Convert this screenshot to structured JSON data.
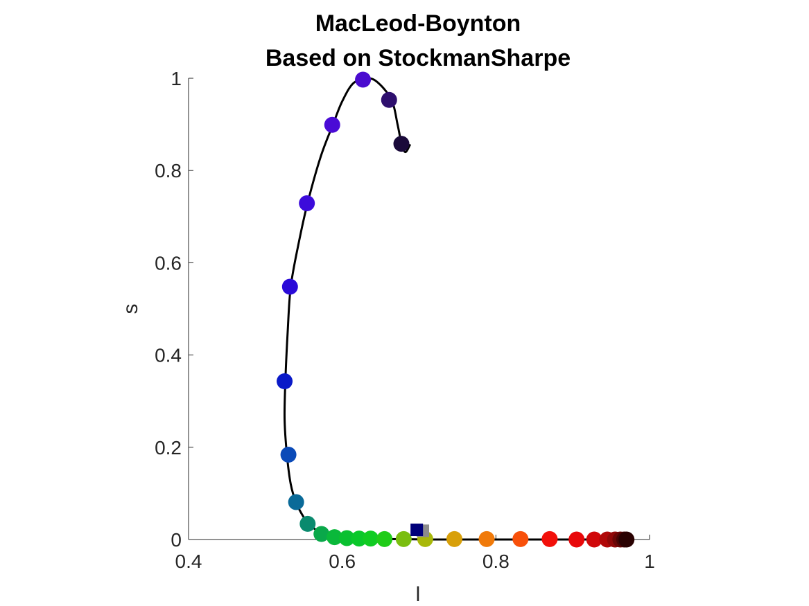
{
  "chart_data": {
    "type": "scatter",
    "title_lines": [
      "MacLeod-Boynton",
      "Based on StockmanSharpe"
    ],
    "xlabel": "l",
    "ylabel": "s",
    "xlim": [
      0.4,
      1.0
    ],
    "ylim": [
      0,
      1.0
    ],
    "xticks": [
      0.4,
      0.6,
      0.8,
      1.0
    ],
    "xtick_labels": [
      "0.4",
      "0.6",
      "0.8",
      "1"
    ],
    "yticks": [
      0,
      0.2,
      0.4,
      0.6,
      0.8,
      1.0
    ],
    "ytick_labels": [
      "0",
      "0.2",
      "0.4",
      "0.6",
      "0.8",
      "1"
    ],
    "grid": false,
    "locus_curve": {
      "color": "#000000",
      "points": [
        [
          0.688,
          0.855
        ],
        [
          0.682,
          0.84
        ],
        [
          0.677,
          0.86
        ],
        [
          0.672,
          0.9
        ],
        [
          0.665,
          0.95
        ],
        [
          0.65,
          0.985
        ],
        [
          0.635,
          1.0
        ],
        [
          0.615,
          0.99
        ],
        [
          0.6,
          0.95
        ],
        [
          0.588,
          0.9
        ],
        [
          0.572,
          0.83
        ],
        [
          0.555,
          0.73
        ],
        [
          0.543,
          0.64
        ],
        [
          0.533,
          0.548
        ],
        [
          0.529,
          0.45
        ],
        [
          0.526,
          0.343
        ],
        [
          0.525,
          0.26
        ],
        [
          0.528,
          0.184
        ],
        [
          0.533,
          0.12
        ],
        [
          0.54,
          0.08
        ],
        [
          0.55,
          0.048
        ],
        [
          0.557,
          0.035
        ],
        [
          0.565,
          0.022
        ],
        [
          0.578,
          0.012
        ],
        [
          0.595,
          0.005
        ],
        [
          0.62,
          0.002
        ],
        [
          0.66,
          0.001
        ],
        [
          0.72,
          0.0
        ],
        [
          0.8,
          0.0
        ],
        [
          0.9,
          0.0
        ],
        [
          0.972,
          0.0
        ]
      ]
    },
    "spectral_points": [
      {
        "l": 0.677,
        "s": 0.858,
        "color": "#1a0a3a"
      },
      {
        "l": 0.661,
        "s": 0.953,
        "color": "#2e0f6e"
      },
      {
        "l": 0.627,
        "s": 0.997,
        "color": "#4a0bcf"
      },
      {
        "l": 0.587,
        "s": 0.899,
        "color": "#4a0bd6"
      },
      {
        "l": 0.554,
        "s": 0.729,
        "color": "#3c0bdb"
      },
      {
        "l": 0.532,
        "s": 0.548,
        "color": "#2a0ad8"
      },
      {
        "l": 0.525,
        "s": 0.343,
        "color": "#0a1ac8"
      },
      {
        "l": 0.53,
        "s": 0.184,
        "color": "#0a4ab8"
      },
      {
        "l": 0.54,
        "s": 0.081,
        "color": "#0a6a98"
      },
      {
        "l": 0.555,
        "s": 0.034,
        "color": "#0a8a6e"
      },
      {
        "l": 0.573,
        "s": 0.012,
        "color": "#0aa84a"
      },
      {
        "l": 0.59,
        "s": 0.005,
        "color": "#0ab83a"
      },
      {
        "l": 0.606,
        "s": 0.003,
        "color": "#0ac030"
      },
      {
        "l": 0.622,
        "s": 0.002,
        "color": "#0ac82a"
      },
      {
        "l": 0.637,
        "s": 0.002,
        "color": "#10cc22"
      },
      {
        "l": 0.655,
        "s": 0.001,
        "color": "#20cc18"
      },
      {
        "l": 0.68,
        "s": 0.001,
        "color": "#7abe10"
      },
      {
        "l": 0.708,
        "s": 0.001,
        "color": "#a8b80a"
      },
      {
        "l": 0.746,
        "s": 0.001,
        "color": "#d8a00a"
      },
      {
        "l": 0.788,
        "s": 0.001,
        "color": "#f07a0a"
      },
      {
        "l": 0.832,
        "s": 0.001,
        "color": "#f8500a"
      },
      {
        "l": 0.87,
        "s": 0.001,
        "color": "#f2100a"
      },
      {
        "l": 0.905,
        "s": 0.0,
        "color": "#e8080a"
      },
      {
        "l": 0.928,
        "s": 0.0,
        "color": "#d0080a"
      },
      {
        "l": 0.945,
        "s": 0.0,
        "color": "#b00808"
      },
      {
        "l": 0.955,
        "s": 0.0,
        "color": "#900808"
      },
      {
        "l": 0.962,
        "s": 0.0,
        "color": "#6a0606"
      },
      {
        "l": 0.967,
        "s": 0.0,
        "color": "#480404"
      },
      {
        "l": 0.97,
        "s": 0.0,
        "color": "#2a0202"
      }
    ],
    "markers": [
      {
        "shape": "square",
        "l": 0.705,
        "s": 0.019,
        "color": "#8c8c8c"
      },
      {
        "shape": "square",
        "l": 0.697,
        "s": 0.021,
        "color": "#00007a"
      }
    ]
  }
}
